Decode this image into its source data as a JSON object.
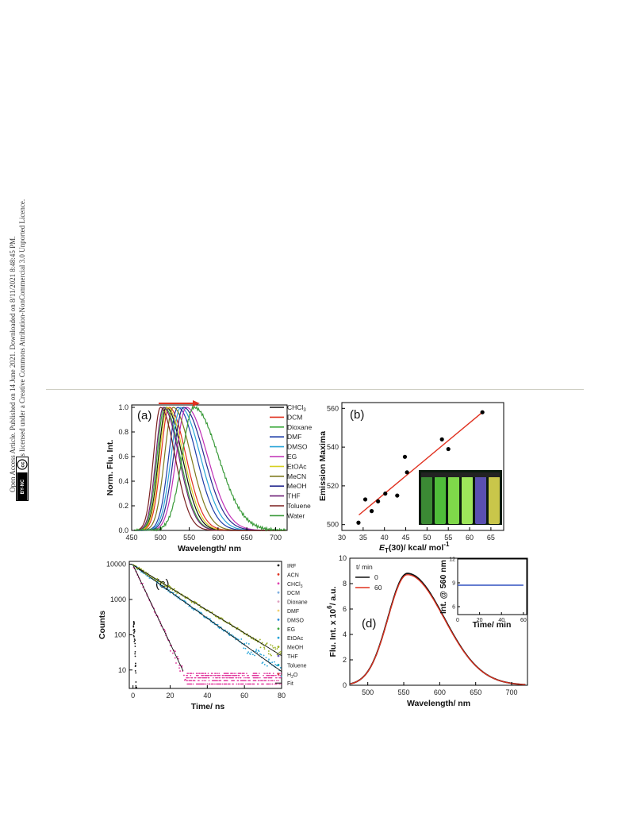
{
  "side_text": {
    "line1": "Open Access Article. Published on 14 June 2021. Downloaded on 8/11/2021 8:48:45 PM.",
    "line2": "This article is licensed under a Creative Commons Attribution-NonCommercial 3.0 Unported Licence.",
    "badge_cc": "cc",
    "badge_by": "BY-NC"
  },
  "panels": {
    "a": "(a)",
    "b": "(b)",
    "c": "(c)",
    "d": "(d)"
  },
  "colors": {
    "CHCl3": "#111111",
    "DCM": "#e0311f",
    "Dioxane": "#3aa83a",
    "DMF": "#1e3ea8",
    "DMSO": "#2aa5d8",
    "EG": "#c02fb6",
    "EtOAc": "#d6d022",
    "MeCN": "#7e7a1d",
    "MeOH": "#262a8f",
    "THF": "#6f2178",
    "Toluene": "#7a1f1f",
    "Water": "#3a9a3a",
    "arrow": "#e0311f",
    "fit_line": "#e0311f"
  },
  "chart_data": [
    {
      "id": "a",
      "type": "line",
      "xlabel": "Wavelength/ nm",
      "ylabel": "Norm. Flu. Int.",
      "xlim": [
        450,
        720
      ],
      "ylim": [
        0,
        1.0
      ],
      "xticks": [
        "450",
        "500",
        "550",
        "600",
        "650",
        "700"
      ],
      "yticks": [
        "0.0",
        "0.2",
        "0.4",
        "0.6",
        "0.8",
        "1.0"
      ],
      "legend_position": "right",
      "series": [
        {
          "name": "CHCl3",
          "label": "CHCl",
          "sub": "3",
          "peak": 510,
          "width": 34
        },
        {
          "name": "DCM",
          "label": "DCM",
          "sub": "",
          "peak": 515,
          "width": 36
        },
        {
          "name": "Dioxane",
          "label": "Dioxane",
          "sub": "",
          "peak": 507,
          "width": 33
        },
        {
          "name": "DMF",
          "label": "DMF",
          "sub": "",
          "peak": 530,
          "width": 40
        },
        {
          "name": "DMSO",
          "label": "DMSO",
          "sub": "",
          "peak": 535,
          "width": 42
        },
        {
          "name": "EG",
          "label": "EG",
          "sub": "",
          "peak": 545,
          "width": 45
        },
        {
          "name": "EtOAc",
          "label": "EtOAc",
          "sub": "",
          "peak": 512,
          "width": 35
        },
        {
          "name": "MeCN",
          "label": "MeCN",
          "sub": "",
          "peak": 522,
          "width": 38
        },
        {
          "name": "MeOH",
          "label": "MeOH",
          "sub": "",
          "peak": 540,
          "width": 44
        },
        {
          "name": "THF",
          "label": "THF",
          "sub": "",
          "peak": 505,
          "width": 33
        },
        {
          "name": "Toluene",
          "label": "Toluene",
          "sub": "",
          "peak": 500,
          "width": 31
        },
        {
          "name": "Water",
          "label": "Water",
          "sub": "",
          "peak": 558,
          "width": 52
        }
      ]
    },
    {
      "id": "b",
      "type": "scatter",
      "xlabel": "E",
      "xlabel_sub": "T",
      "xlabel_rest": "(30)/  kcal/ mol",
      "xlabel_sup": "-1",
      "ylabel": "Emission Maxima",
      "xlim": [
        30,
        68
      ],
      "ylim": [
        497,
        563
      ],
      "xticks": [
        "30",
        "35",
        "40",
        "45",
        "50",
        "55",
        "60",
        "65"
      ],
      "yticks": [
        "500",
        "520",
        "540",
        "560"
      ],
      "points": [
        [
          33.9,
          501
        ],
        [
          35.5,
          513
        ],
        [
          37.0,
          507
        ],
        [
          38.5,
          512
        ],
        [
          40.2,
          516
        ],
        [
          43.0,
          515
        ],
        [
          44.8,
          535
        ],
        [
          45.3,
          527
        ],
        [
          53.5,
          544
        ],
        [
          55.0,
          539
        ],
        [
          63.0,
          558
        ]
      ],
      "fit": [
        [
          34,
          505
        ],
        [
          63,
          558
        ]
      ]
    },
    {
      "id": "c",
      "type": "scatter",
      "xlabel": "Time/ ns",
      "ylabel": "Counts",
      "yscale": "log",
      "xlim": [
        -2,
        80
      ],
      "ylim": [
        3,
        12000
      ],
      "xticks": [
        "0",
        "20",
        "40",
        "60",
        "80"
      ],
      "yticks": [
        "10",
        "100",
        "1000",
        "10000"
      ],
      "legend_position": "right",
      "legend": [
        {
          "label": "IRF",
          "sub": "",
          "color": "#111111"
        },
        {
          "label": "ACN",
          "sub": "",
          "color": "#e0311f"
        },
        {
          "label": "CHCl",
          "sub": "3",
          "color": "#e03fb0"
        },
        {
          "label": "DCM",
          "sub": "",
          "color": "#7fb0e0"
        },
        {
          "label": "Dioxane",
          "sub": "",
          "color": "#e0a0c0"
        },
        {
          "label": "DMF",
          "sub": "",
          "color": "#f0d070"
        },
        {
          "label": "DMSO",
          "sub": "",
          "color": "#2a8ad8"
        },
        {
          "label": "EG",
          "sub": "",
          "color": "#3aa83a"
        },
        {
          "label": "EtOAc",
          "sub": "",
          "color": "#2aa5d8"
        },
        {
          "label": "MeOH",
          "sub": "",
          "color": "#9ab020"
        },
        {
          "label": "THF",
          "sub": "",
          "color": "#7060c0"
        },
        {
          "label": "Toluene",
          "sub": "",
          "color": "#1aa0b0"
        },
        {
          "label": "H",
          "sub": "2",
          "rest": "O",
          "color": "#d04040"
        },
        {
          "label": "Fit",
          "sub": "",
          "color": "#111111"
        }
      ],
      "decays": [
        {
          "tau": 3.9,
          "color": "#e0319a"
        },
        {
          "tau": 11.5,
          "color": "#2aa5d8"
        },
        {
          "tau": 13.5,
          "color": "#9ab020"
        }
      ]
    },
    {
      "id": "d",
      "type": "line",
      "xlabel": "Wavelength/ nm",
      "ylabel": "Flu. Int. x 10",
      "ylabel_sup": "6",
      "ylabel_rest": "/ a.u.",
      "xlim": [
        475,
        722
      ],
      "ylim": [
        0,
        10
      ],
      "xticks": [
        "500",
        "550",
        "600",
        "650",
        "700"
      ],
      "yticks": [
        "0",
        "2",
        "4",
        "6",
        "8",
        "10"
      ],
      "legend_title": "t/ min",
      "series": [
        {
          "name": "0",
          "color": "#111111",
          "peak": 555,
          "height": 8.8
        },
        {
          "name": "60",
          "color": "#e0311f",
          "peak": 555,
          "height": 8.7
        }
      ],
      "inset": {
        "xlabel": "Time/ min",
        "ylabel": "Int. @ 560 nm",
        "xlim": [
          0,
          63
        ],
        "ylim": [
          5,
          12
        ],
        "xticks": [
          "0",
          "20",
          "40",
          "60"
        ],
        "yticks": [
          "6",
          "9",
          "12"
        ],
        "value": 8.7,
        "color": "#3050c0"
      }
    }
  ]
}
